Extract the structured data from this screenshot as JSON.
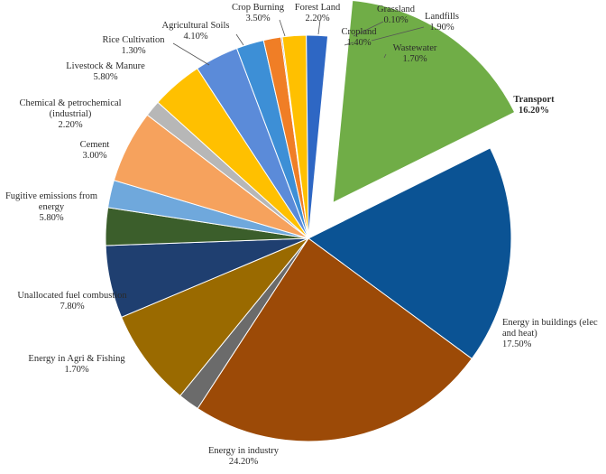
{
  "chart_data": {
    "type": "pie",
    "title": "",
    "exploded_slice": "Transport",
    "slices": [
      {
        "name": "Transport",
        "label_lines": [
          "Transport"
        ],
        "value_label": "16.20%",
        "value": 16.2,
        "color": "#70ad47"
      },
      {
        "name": "Energy in buildings (elec and heat)",
        "label_lines": [
          "Energy in buildings (elec",
          "and heat)"
        ],
        "value_label": "17.50%",
        "value": 17.5,
        "color": "#0b5394"
      },
      {
        "name": "Energy in industry",
        "label_lines": [
          "Energy in industry"
        ],
        "value_label": "24.20%",
        "value": 24.2,
        "color": "#9c4a07"
      },
      {
        "name": "Energy in Agri & Fishing",
        "label_lines": [
          "Energy in Agri & Fishing"
        ],
        "value_label": "1.70%",
        "value": 1.7,
        "color": "#6b6b6b"
      },
      {
        "name": "Unallocated fuel combustion",
        "label_lines": [
          "Unallocated fuel combustion"
        ],
        "value_label": "7.80%",
        "value": 7.8,
        "color": "#9a6a00"
      },
      {
        "name": "Fugitive emissions from energy",
        "label_lines": [
          "Fugitive emissions from",
          "energy"
        ],
        "value_label": "5.80%",
        "value": 5.8,
        "color": "#1f3f70"
      },
      {
        "name": "Cement",
        "label_lines": [
          "Cement"
        ],
        "value_label": "3.00%",
        "value": 3.0,
        "color": "#3b5e2b"
      },
      {
        "name": "Chemical & petrochemical (industrial)",
        "label_lines": [
          "Chemical & petrochemical",
          "(industrial)"
        ],
        "value_label": "2.20%",
        "value": 2.2,
        "color": "#6fa8dc"
      },
      {
        "name": "Livestock & Manure",
        "label_lines": [
          "Livestock & Manure"
        ],
        "value_label": "5.80%",
        "value": 5.8,
        "color": "#f6a25d"
      },
      {
        "name": "Rice Cultivation",
        "label_lines": [
          "Rice Cultivation"
        ],
        "value_label": "1.30%",
        "value": 1.3,
        "color": "#b7b7b7"
      },
      {
        "name": "Agricultural Soils",
        "label_lines": [
          "Agricultural Soils"
        ],
        "value_label": "4.10%",
        "value": 4.1,
        "color": "#ffc000"
      },
      {
        "name": "Crop Burning",
        "label_lines": [
          "Crop Burning"
        ],
        "value_label": "3.50%",
        "value": 3.5,
        "color": "#5b8bd9"
      },
      {
        "name": "Forest Land",
        "label_lines": [
          "Forest Land"
        ],
        "value_label": "2.20%",
        "value": 2.2,
        "color": "#3d8fd6"
      },
      {
        "name": "Cropland",
        "label_lines": [
          "Cropland"
        ],
        "value_label": "1.40%",
        "value": 1.4,
        "color": "#f07e26"
      },
      {
        "name": "Grassland",
        "label_lines": [
          "Grassland"
        ],
        "value_label": "0.10%",
        "value": 0.1,
        "color": "#7f7f7f"
      },
      {
        "name": "Landfills",
        "label_lines": [
          "Landfills"
        ],
        "value_label": "1.90%",
        "value": 1.9,
        "color": "#ffc000"
      },
      {
        "name": "Wastewater",
        "label_lines": [
          "Wastewater"
        ],
        "value_label": "1.70%",
        "value": 1.7,
        "color": "#2e67c4"
      }
    ]
  }
}
